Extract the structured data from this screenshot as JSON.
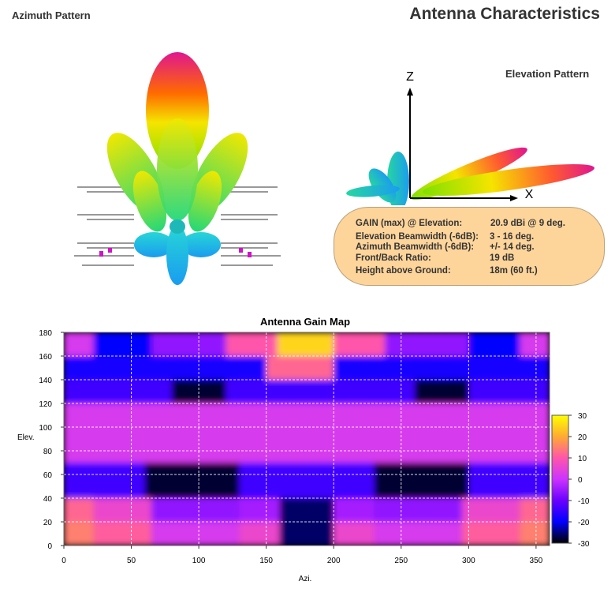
{
  "header": {
    "azimuth_title": "Azimuth Pattern",
    "main_title": "Antenna Characteristics",
    "elevation_title": "Elevation Pattern"
  },
  "elevation_axes": {
    "z_label": "Z",
    "x_label": "X"
  },
  "info": [
    {
      "label": "GAIN (max) @ Elevation:",
      "value": "20.9 dBi @ 9 deg."
    },
    {
      "label": "Elevation Beamwidth (-6dB):",
      "value": "3 - 16 deg."
    },
    {
      "label": "Azimuth Beamwidth (-6dB):",
      "value": "+/- 14 deg."
    },
    {
      "label": "Front/Back Ratio:",
      "value": "19 dB"
    },
    {
      "label": "Height above Ground:",
      "value": "18m (60 ft.)"
    }
  ],
  "chart_data": {
    "type": "heatmap",
    "title": "Antenna Gain Map",
    "xlabel": "Azi.",
    "ylabel": "Elev.",
    "xlim": [
      0,
      360
    ],
    "ylim": [
      0,
      180
    ],
    "x_ticks": [
      0,
      50,
      100,
      150,
      200,
      250,
      300,
      350
    ],
    "y_ticks": [
      0,
      20,
      40,
      60,
      80,
      100,
      120,
      140,
      160,
      180
    ],
    "colorbar": {
      "range": [
        -30,
        30
      ],
      "ticks": [
        30,
        20,
        10,
        0,
        -10,
        -20,
        -30
      ]
    },
    "grid": true,
    "grid_step": {
      "x": 50,
      "y": 20
    },
    "bands": [
      {
        "elev": [
          0,
          20
        ],
        "segments": [
          {
            "azi": [
              0,
              22
            ],
            "gain": 15
          },
          {
            "azi": [
              22,
              65
            ],
            "gain": 11
          },
          {
            "azi": [
              65,
              130
            ],
            "gain": 2
          },
          {
            "azi": [
              130,
              160
            ],
            "gain": 6
          },
          {
            "azi": [
              160,
              200
            ],
            "gain": -26
          },
          {
            "azi": [
              200,
              230
            ],
            "gain": 6
          },
          {
            "azi": [
              230,
              295
            ],
            "gain": 2
          },
          {
            "azi": [
              295,
              338
            ],
            "gain": 11
          },
          {
            "azi": [
              338,
              360
            ],
            "gain": 15
          }
        ]
      },
      {
        "elev": [
          20,
          40
        ],
        "segments": [
          {
            "azi": [
              0,
              22
            ],
            "gain": 12
          },
          {
            "azi": [
              22,
              65
            ],
            "gain": 6
          },
          {
            "azi": [
              65,
              130
            ],
            "gain": -6
          },
          {
            "azi": [
              130,
              160
            ],
            "gain": -4
          },
          {
            "azi": [
              160,
              200
            ],
            "gain": -26
          },
          {
            "azi": [
              200,
              230
            ],
            "gain": -4
          },
          {
            "azi": [
              230,
              295
            ],
            "gain": -6
          },
          {
            "azi": [
              295,
              338
            ],
            "gain": 6
          },
          {
            "azi": [
              338,
              360
            ],
            "gain": 12
          }
        ]
      },
      {
        "elev": [
          40,
          70
        ],
        "segments": [
          {
            "azi": [
              0,
              60
            ],
            "gain": -14
          },
          {
            "azi": [
              60,
              130
            ],
            "gain": -28
          },
          {
            "azi": [
              130,
              230
            ],
            "gain": -14
          },
          {
            "azi": [
              230,
              300
            ],
            "gain": -28
          },
          {
            "azi": [
              300,
              360
            ],
            "gain": -14
          }
        ]
      },
      {
        "elev": [
          70,
          120
        ],
        "segments": [
          {
            "azi": [
              0,
              360
            ],
            "gain": 2
          }
        ]
      },
      {
        "elev": [
          120,
          140
        ],
        "segments": [
          {
            "azi": [
              0,
              80
            ],
            "gain": -14
          },
          {
            "azi": [
              80,
              120
            ],
            "gain": -28
          },
          {
            "azi": [
              120,
              260
            ],
            "gain": -14
          },
          {
            "azi": [
              260,
              300
            ],
            "gain": -28
          },
          {
            "azi": [
              300,
              360
            ],
            "gain": -14
          }
        ]
      },
      {
        "elev": [
          140,
          160
        ],
        "segments": [
          {
            "azi": [
              0,
              150
            ],
            "gain": -18
          },
          {
            "azi": [
              150,
              200
            ],
            "gain": 12
          },
          {
            "azi": [
              200,
              360
            ],
            "gain": -18
          }
        ]
      },
      {
        "elev": [
          160,
          180
        ],
        "segments": [
          {
            "azi": [
              0,
              22
            ],
            "gain": 2
          },
          {
            "azi": [
              22,
              65
            ],
            "gain": -20
          },
          {
            "azi": [
              65,
              120
            ],
            "gain": -6
          },
          {
            "azi": [
              120,
              158
            ],
            "gain": 10
          },
          {
            "azi": [
              158,
              200
            ],
            "gain": 25
          },
          {
            "azi": [
              200,
              238
            ],
            "gain": 10
          },
          {
            "azi": [
              238,
              300
            ],
            "gain": -6
          },
          {
            "azi": [
              300,
              338
            ],
            "gain": -20
          },
          {
            "azi": [
              338,
              360
            ],
            "gain": 2
          }
        ]
      }
    ]
  }
}
